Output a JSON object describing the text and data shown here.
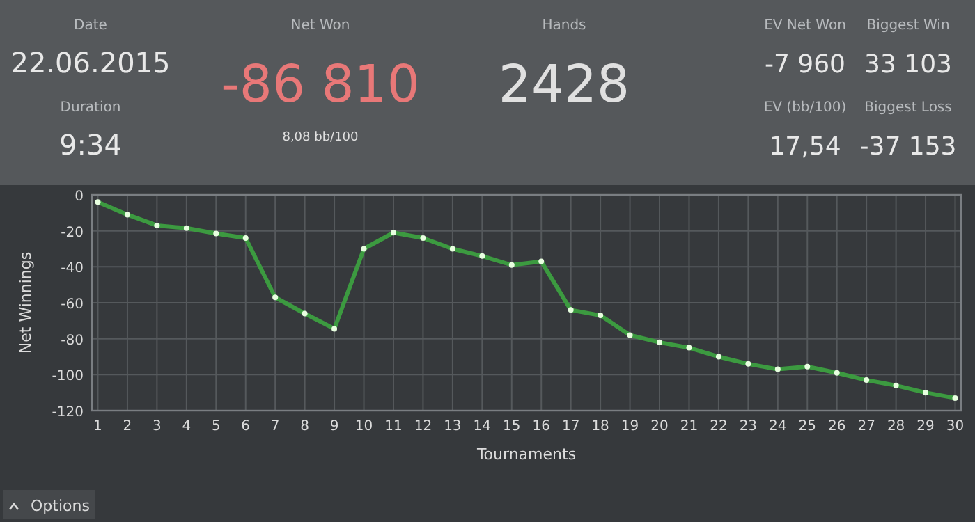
{
  "chart_data": [
    {
      "type": "other",
      "annotations": [
        "Date",
        "22.06.2015",
        "Duration",
        "9:34",
        "Net Won",
        "-86 810",
        "8,08 bb/100",
        "Hands",
        "2428",
        "EV Net Won",
        "-7 960",
        "Biggest Win",
        "33 103",
        "EV (bb/100)",
        "17,54",
        "Biggest Loss",
        "-37 153"
      ]
    },
    {
      "type": "line",
      "xlabel": "Tournaments",
      "ylabel": "Net Winnings",
      "annotations": [
        "Options"
      ],
      "x": [
        1,
        2,
        3,
        4,
        5,
        6,
        7,
        8,
        9,
        10,
        11,
        12,
        13,
        14,
        15,
        16,
        17,
        18,
        19,
        20,
        21,
        22,
        23,
        24,
        25,
        26,
        27,
        28,
        29,
        30
      ],
      "series": [
        {
          "color": "#3c9a40",
          "values": [
            -4,
            -11,
            -17,
            -18.5,
            -21.5,
            -24,
            -57,
            -66,
            -74.5,
            -30,
            -21,
            -24,
            -30,
            -34,
            -39,
            -37,
            -64,
            -67,
            -78,
            -82,
            -85,
            -90,
            -94,
            -97,
            -95.5,
            -99,
            -103,
            -106,
            -110,
            -113
          ]
        }
      ],
      "xlim": [
        0.8,
        30.2
      ],
      "xticks": [
        1,
        2,
        3,
        4,
        5,
        6,
        7,
        8,
        9,
        10,
        11,
        12,
        13,
        14,
        15,
        16,
        17,
        18,
        19,
        20,
        21,
        22,
        23,
        24,
        25,
        26,
        27,
        28,
        29,
        30
      ],
      "ylim": [
        -120,
        0
      ],
      "yticks": [
        -120,
        -100,
        -80,
        -60,
        -40,
        -20,
        0
      ],
      "grid": true,
      "marker": "circle",
      "line_style": "solid"
    }
  ]
}
